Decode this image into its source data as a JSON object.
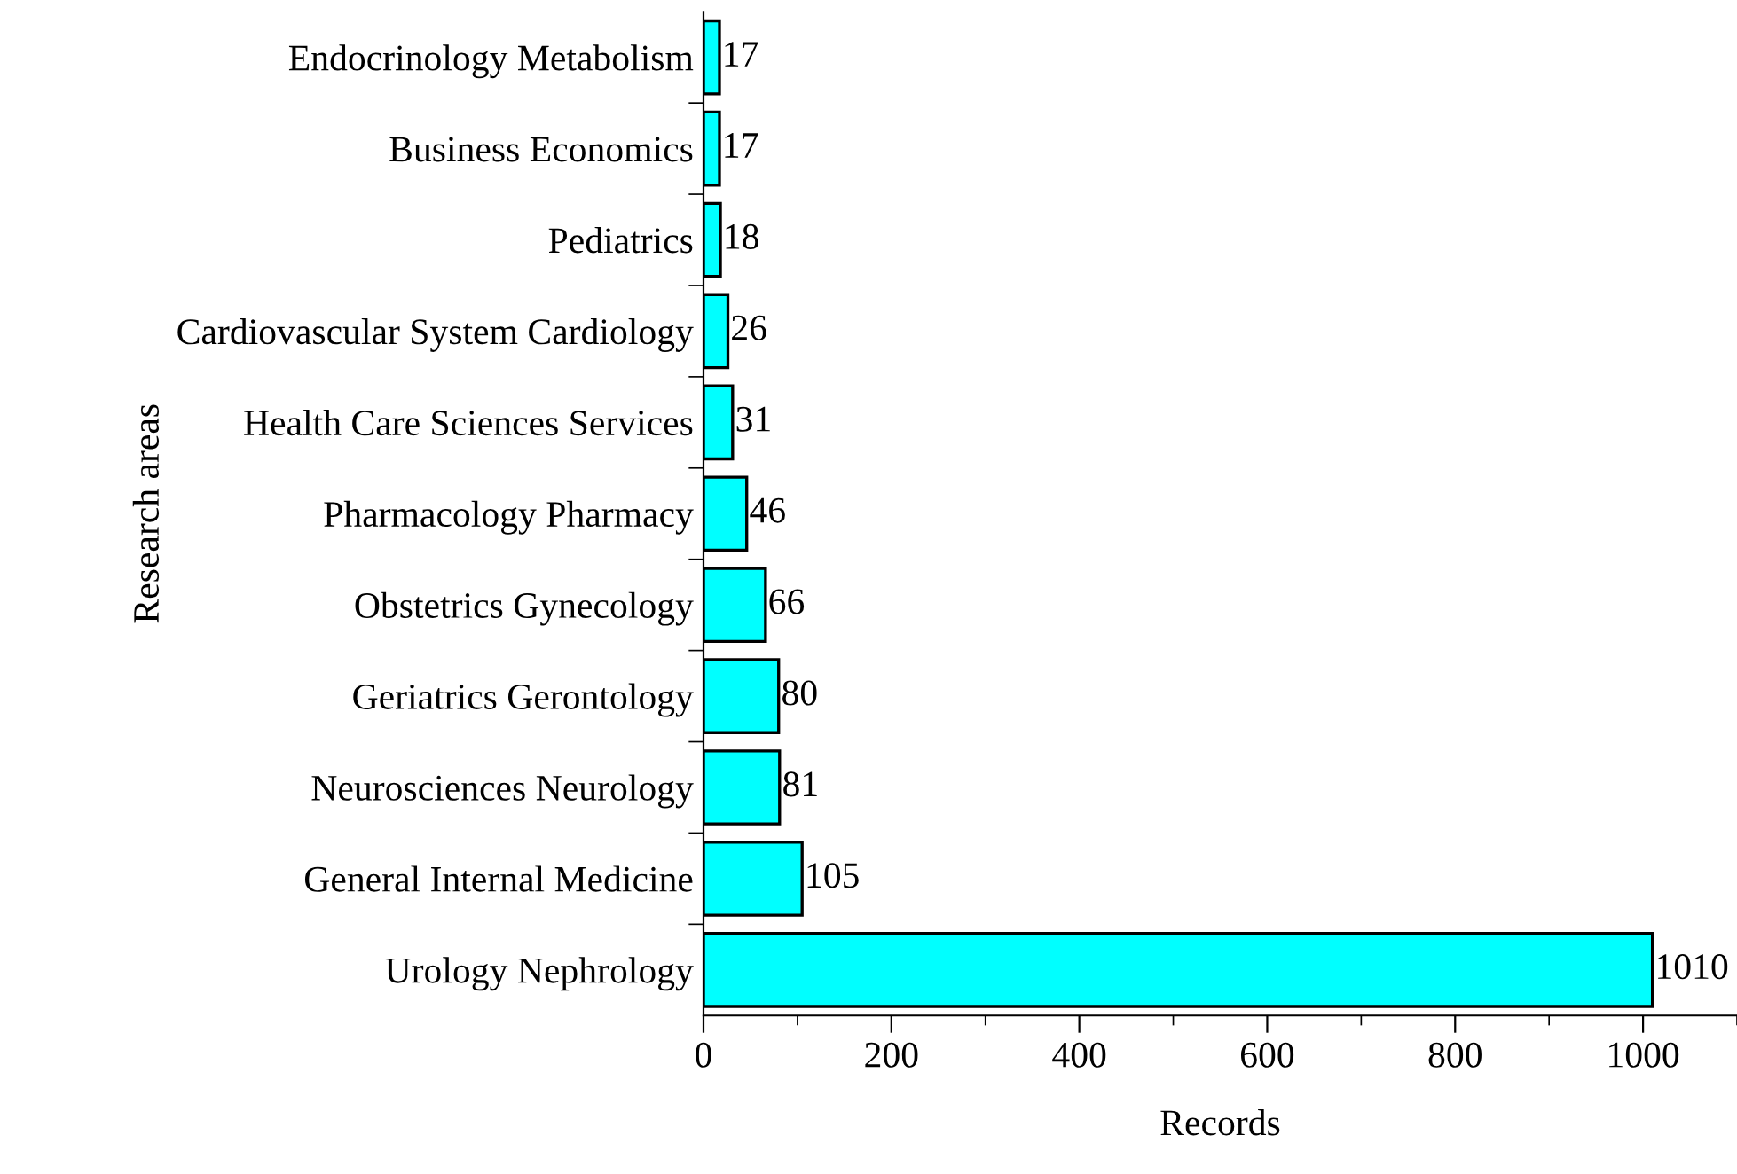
{
  "chart_data": {
    "type": "bar",
    "orientation": "horizontal",
    "xlabel": "Records",
    "ylabel": "Research areas",
    "categories": [
      "Endocrinology Metabolism",
      "Business Economics",
      "Pediatrics",
      "Cardiovascular System Cardiology",
      "Health Care Sciences Services",
      "Pharmacology Pharmacy",
      "Obstetrics Gynecology",
      "Geriatrics Gerontology",
      "Neurosciences Neurology",
      "General Internal Medicine",
      "Urology Nephrology"
    ],
    "values": [
      17,
      17,
      18,
      26,
      31,
      46,
      66,
      80,
      81,
      105,
      1010
    ],
    "color": "#00ffff",
    "xlim": [
      0,
      1100
    ],
    "xticks": [
      0,
      200,
      400,
      600,
      800,
      1000
    ],
    "data_labels": true,
    "grid": false,
    "legend": false
  }
}
